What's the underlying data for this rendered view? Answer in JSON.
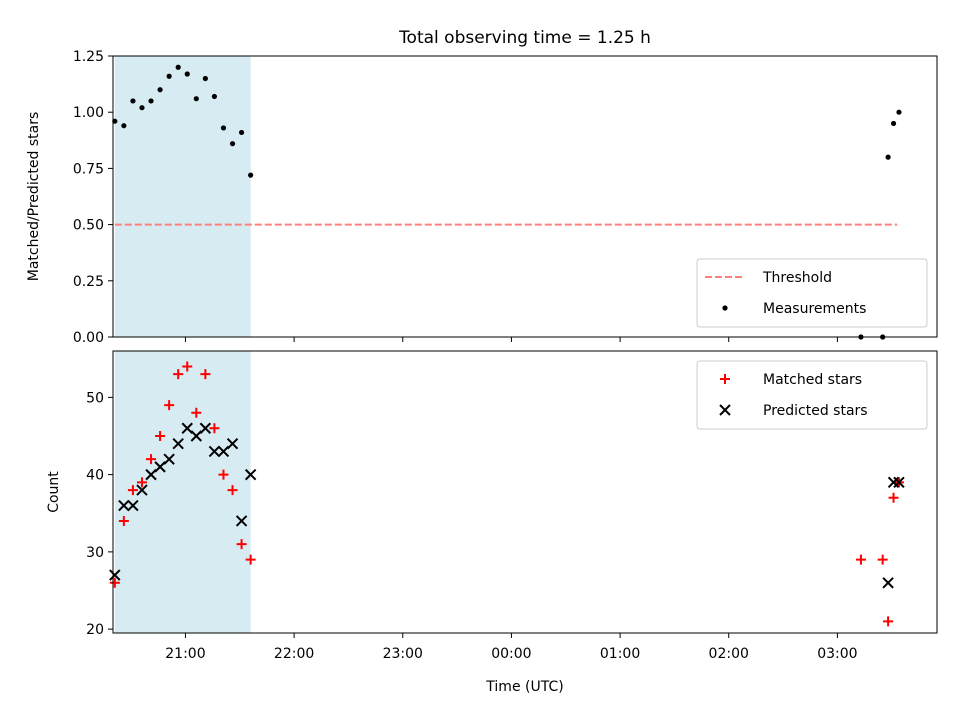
{
  "chart_data": [
    {
      "type": "scatter",
      "title": "Total observing time = 1.25 h",
      "xlabel": "",
      "ylabel": "Matched/Predicted stars",
      "xlim": [
        "20:20",
        "03:55"
      ],
      "ylim": [
        0,
        1.25
      ],
      "y_ticks": [
        0,
        0.25,
        0.5,
        0.75,
        1.0,
        1.25
      ],
      "y_tick_labels": [
        "0.00",
        "0.25",
        "0.50",
        "0.75",
        "1.00",
        "1.25"
      ],
      "x_ticks": [
        "21:00",
        "22:00",
        "23:00",
        "00:00",
        "01:00",
        "02:00",
        "03:00"
      ],
      "x_tick_labels_visible": false,
      "shaded_span": {
        "from": "20:21",
        "to": "21:36",
        "color": "#add8e6"
      },
      "legend_position": "lower-right",
      "series": [
        {
          "name": "Threshold",
          "kind": "dashed-line",
          "color": "#ff7f7f",
          "x": [
            "20:21",
            "03:33"
          ],
          "y": [
            0.5,
            0.5
          ]
        },
        {
          "name": "Measurements",
          "kind": "points",
          "color": "#000000",
          "x": [
            "20:21",
            "20:26",
            "20:31",
            "20:36",
            "20:41",
            "20:46",
            "20:51",
            "20:56",
            "21:01",
            "21:06",
            "21:11",
            "21:16",
            "21:21",
            "21:26",
            "21:31",
            "21:36",
            "03:13",
            "03:25",
            "03:28",
            "03:31",
            "03:34"
          ],
          "y": [
            0.96,
            0.94,
            1.05,
            1.02,
            1.05,
            1.1,
            1.16,
            1.2,
            1.17,
            1.06,
            1.15,
            1.07,
            0.93,
            0.86,
            0.91,
            0.72,
            0.0,
            0.0,
            0.8,
            0.95,
            1.0
          ]
        }
      ]
    },
    {
      "type": "scatter",
      "title": "",
      "xlabel": "Time (UTC)",
      "ylabel": "Count",
      "xlim": [
        "20:20",
        "03:55"
      ],
      "ylim": [
        19.5,
        56
      ],
      "y_ticks": [
        20,
        30,
        40,
        50
      ],
      "y_tick_labels": [
        "20",
        "30",
        "40",
        "50"
      ],
      "x_ticks": [
        "21:00",
        "22:00",
        "23:00",
        "00:00",
        "01:00",
        "02:00",
        "03:00"
      ],
      "x_tick_labels": [
        "21:00",
        "22:00",
        "23:00",
        "00:00",
        "01:00",
        "02:00",
        "03:00"
      ],
      "shaded_span": {
        "from": "20:21",
        "to": "21:36",
        "color": "#add8e6"
      },
      "legend_position": "top-right",
      "series": [
        {
          "name": "Matched stars",
          "marker": "plus",
          "color": "#ff0000",
          "x": [
            "20:21",
            "20:26",
            "20:31",
            "20:36",
            "20:41",
            "20:46",
            "20:51",
            "20:56",
            "21:01",
            "21:06",
            "21:11",
            "21:16",
            "21:21",
            "21:26",
            "21:31",
            "21:36",
            "03:13",
            "03:25",
            "03:28",
            "03:31",
            "03:34"
          ],
          "y": [
            26,
            34,
            38,
            39,
            42,
            45,
            49,
            53,
            54,
            48,
            53,
            46,
            40,
            38,
            31,
            29,
            29,
            29,
            21,
            37,
            39
          ]
        },
        {
          "name": "Predicted stars",
          "marker": "x",
          "color": "#000000",
          "x": [
            "20:21",
            "20:26",
            "20:31",
            "20:36",
            "20:41",
            "20:46",
            "20:51",
            "20:56",
            "21:01",
            "21:06",
            "21:11",
            "21:16",
            "21:21",
            "21:26",
            "21:31",
            "21:36",
            "03:28",
            "03:31",
            "03:34"
          ],
          "y": [
            27,
            36,
            36,
            38,
            40,
            41,
            42,
            44,
            46,
            45,
            46,
            43,
            43,
            44,
            34,
            40,
            26,
            39,
            39
          ]
        }
      ]
    }
  ]
}
